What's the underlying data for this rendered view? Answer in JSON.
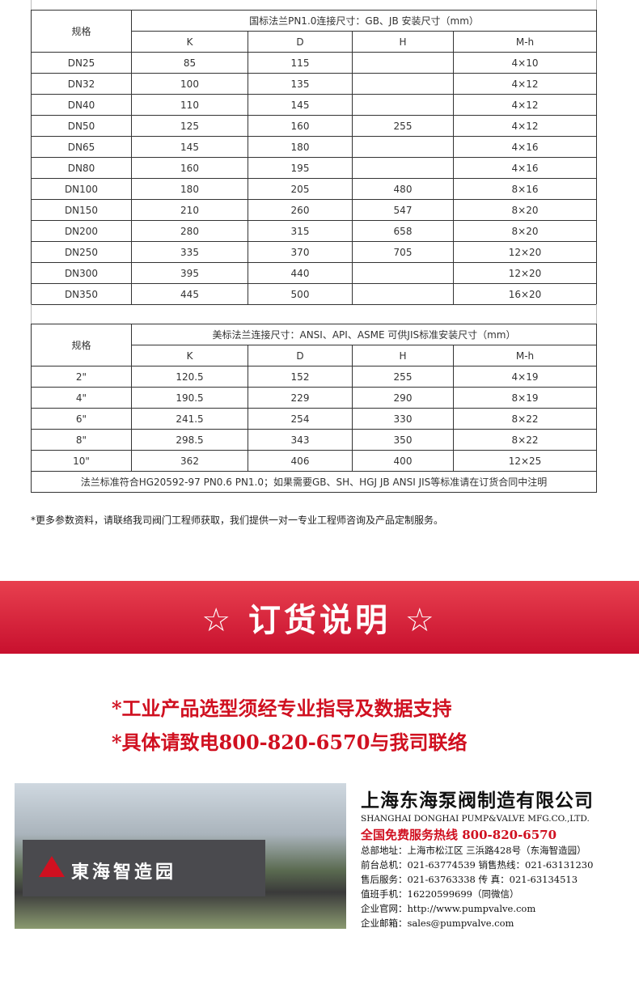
{
  "table1": {
    "spec_label": "规格",
    "title": "国标法兰PN1.0连接尺寸：GB、JB 安装尺寸（mm）",
    "columns": [
      "K",
      "D",
      "H",
      "M-h"
    ],
    "rows": [
      [
        "DN25",
        "85",
        "115",
        "",
        "4×10"
      ],
      [
        "DN32",
        "100",
        "135",
        "",
        "4×12"
      ],
      [
        "DN40",
        "110",
        "145",
        "",
        "4×12"
      ],
      [
        "DN50",
        "125",
        "160",
        "255",
        "4×12"
      ],
      [
        "DN65",
        "145",
        "180",
        "",
        "4×16"
      ],
      [
        "DN80",
        "160",
        "195",
        "",
        "4×16"
      ],
      [
        "DN100",
        "180",
        "205",
        "480",
        "8×16"
      ],
      [
        "DN150",
        "210",
        "260",
        "547",
        "8×20"
      ],
      [
        "DN200",
        "280",
        "315",
        "658",
        "8×20"
      ],
      [
        "DN250",
        "335",
        "370",
        "705",
        "12×20"
      ],
      [
        "DN300",
        "395",
        "440",
        "",
        "12×20"
      ],
      [
        "DN350",
        "445",
        "500",
        "",
        "16×20"
      ]
    ]
  },
  "table2": {
    "spec_label": "规格",
    "title": "美标法兰连接尺寸：ANSI、API、ASME 可供JIS标准安装尺寸（mm）",
    "columns": [
      "K",
      "D",
      "H",
      "M-h"
    ],
    "rows": [
      [
        "2\"",
        "120.5",
        "152",
        "255",
        "4×19"
      ],
      [
        "4\"",
        "190.5",
        "229",
        "290",
        "8×19"
      ],
      [
        "6\"",
        "241.5",
        "254",
        "330",
        "8×22"
      ],
      [
        "8\"",
        "298.5",
        "343",
        "350",
        "8×22"
      ],
      [
        "10\"",
        "362",
        "406",
        "400",
        "12×25"
      ]
    ],
    "footnote": "法兰标准符合HG20592-97 PN0.6 PN1.0；如果需要GB、SH、HGJ JB ANSI JIS等标准请在订货合同中注明"
  },
  "note": "*更多参数资料，请联络我司阀门工程师获取，我们提供一对一专业工程师咨询及产品定制服务。",
  "banner": {
    "title": "☆ 订货说明 ☆"
  },
  "order_lines": [
    "*工业产品选型须经专业指导及数据支持",
    "*具体请致电800-820-6570与我司联络"
  ],
  "photo": {
    "sign_text": "東海智造园"
  },
  "company": {
    "name": "上海东海泵阀制造有限公司",
    "name_en": "SHANGHAI DONGHAI PUMP&VALVE MFG.CO.,LTD.",
    "hotline": "全国免费服务热线  800-820-6570",
    "lines": [
      "总部地址：上海市松江区 三浜路428号（东海智造园）",
      "前台总机：021-63774539   销售热线：021-63131230",
      "售后服务：021-63763338   传    真：021-63134513",
      "值班手机：16220599699（同微信）",
      "企业官网：http://www.pumpvalve.com",
      "企业邮箱：sales@pumpvalve.com"
    ]
  },
  "colors": {
    "accent": "#d01020",
    "banner": "#e03040"
  }
}
